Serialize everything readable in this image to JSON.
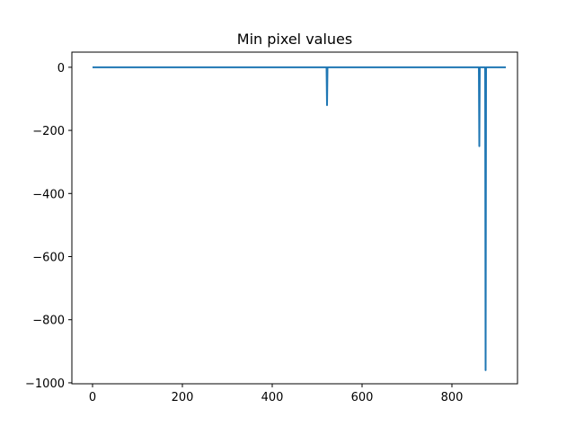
{
  "chart_data": {
    "type": "line",
    "title": "Min pixel values",
    "xlabel": "",
    "ylabel": "",
    "xlim": [
      -46,
      946
    ],
    "ylim": [
      -1003,
      48
    ],
    "x_ticks": [
      0,
      200,
      400,
      600,
      800
    ],
    "y_ticks": [
      0,
      -200,
      -400,
      -600,
      -800,
      -1000
    ],
    "x_tick_labels": [
      "0",
      "200",
      "400",
      "600",
      "800"
    ],
    "y_tick_labels": [
      "0",
      "−200",
      "−400",
      "−600",
      "−800",
      "−1000"
    ],
    "grid": false,
    "legend": "none",
    "series": [
      {
        "color": "#1f77b4",
        "x": [
          0,
          521,
          522,
          523,
          860,
          861,
          862,
          874,
          875,
          876,
          920
        ],
        "y": [
          0,
          0,
          -120,
          0,
          0,
          -250,
          0,
          0,
          -960,
          0,
          0
        ]
      }
    ]
  }
}
